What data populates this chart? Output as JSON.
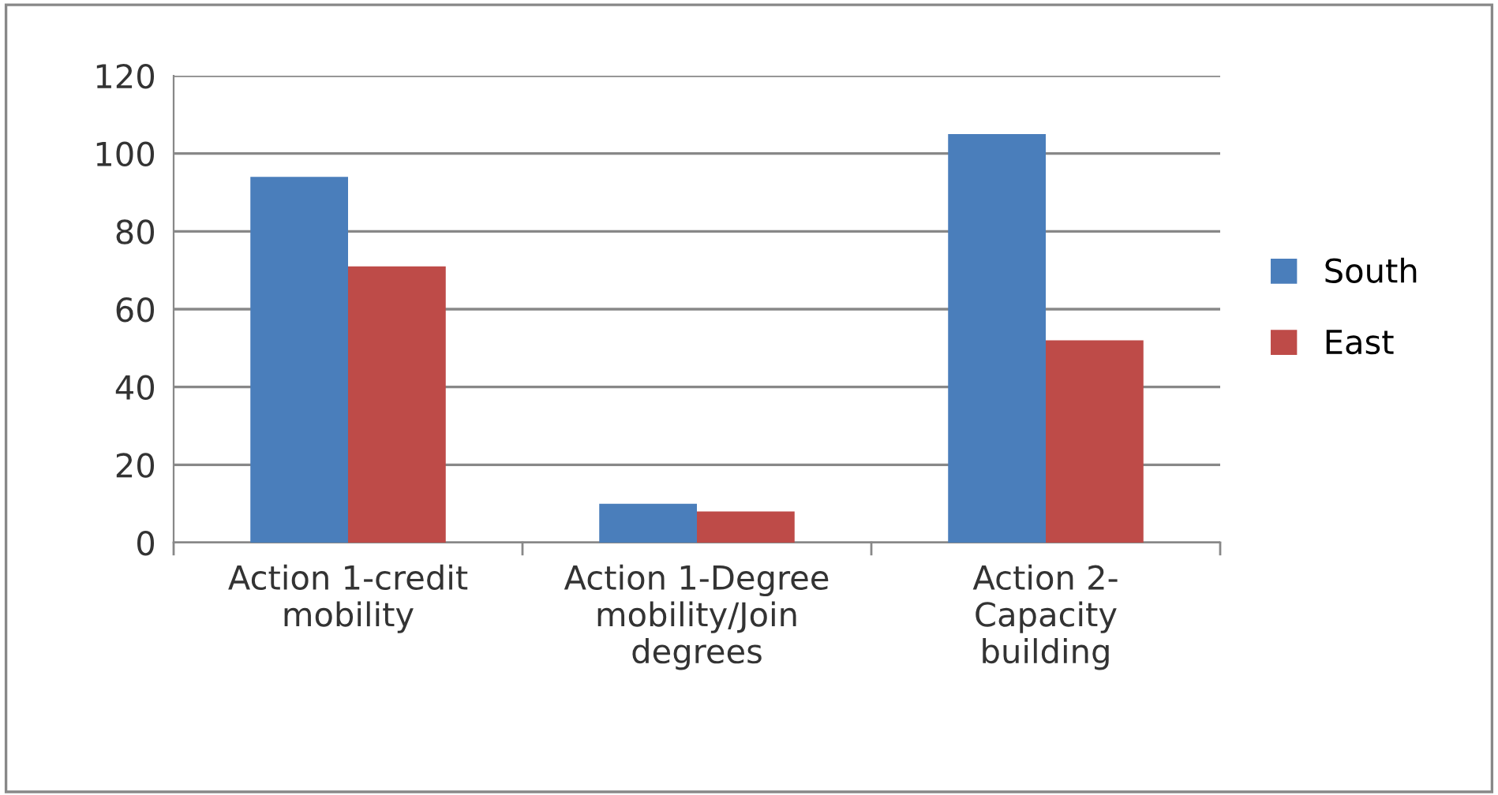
{
  "chart_data": {
    "type": "bar",
    "categories": [
      "Action 1-credit\nmobility",
      "Action 1-Degree\nmobility/Join\ndegrees",
      "Action 2-\nCapacity\nbuilding"
    ],
    "series": [
      {
        "name": "South",
        "color": "#4a7ebb",
        "values": [
          94,
          10,
          105
        ]
      },
      {
        "name": "East",
        "color": "#be4b48",
        "values": [
          71,
          8,
          52
        ]
      }
    ],
    "ylim": [
      0,
      120
    ],
    "yticks": [
      0,
      20,
      40,
      60,
      80,
      100,
      120
    ],
    "grid": "y",
    "legend": "right"
  }
}
